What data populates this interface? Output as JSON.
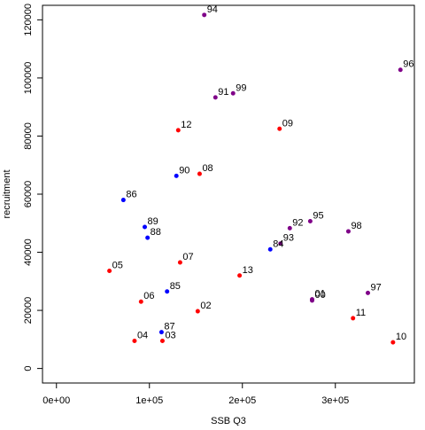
{
  "chart_data": {
    "type": "scatter",
    "xlabel": "SSB Q3",
    "ylabel": "recruitment",
    "xlim": [
      -15000,
      385000
    ],
    "ylim": [
      -5000,
      125000
    ],
    "x_ticks": [
      0,
      100000,
      200000,
      300000
    ],
    "x_tick_labels": [
      "0e+00",
      "1e+05",
      "2e+05",
      "3e+05"
    ],
    "y_ticks": [
      0,
      20000,
      40000,
      60000,
      80000,
      100000,
      120000
    ],
    "y_tick_labels": [
      "0",
      "20000",
      "40000",
      "60000",
      "80000",
      "100000",
      "120000"
    ],
    "grid": false,
    "colors": {
      "blue": "#0000ff",
      "purple": "#7f0088",
      "red": "#ff0000"
    },
    "points": [
      {
        "label": "84",
        "x": 230000,
        "y": 41000,
        "color": "blue"
      },
      {
        "label": "85",
        "x": 119000,
        "y": 26500,
        "color": "blue"
      },
      {
        "label": "86",
        "x": 72000,
        "y": 58000,
        "color": "blue"
      },
      {
        "label": "87",
        "x": 113000,
        "y": 12500,
        "color": "blue"
      },
      {
        "label": "88",
        "x": 98000,
        "y": 45000,
        "color": "blue"
      },
      {
        "label": "89",
        "x": 95000,
        "y": 48700,
        "color": "blue"
      },
      {
        "label": "90",
        "x": 129000,
        "y": 66300,
        "color": "blue"
      },
      {
        "label": "91",
        "x": 171000,
        "y": 93300,
        "color": "purple"
      },
      {
        "label": "92",
        "x": 251000,
        "y": 48300,
        "color": "purple"
      },
      {
        "label": "93",
        "x": 241000,
        "y": 43000,
        "color": "purple"
      },
      {
        "label": "94",
        "x": 159000,
        "y": 121700,
        "color": "purple"
      },
      {
        "label": "95",
        "x": 273000,
        "y": 50700,
        "color": "purple"
      },
      {
        "label": "96",
        "x": 370000,
        "y": 102800,
        "color": "purple"
      },
      {
        "label": "97",
        "x": 335000,
        "y": 26000,
        "color": "purple"
      },
      {
        "label": "98",
        "x": 314000,
        "y": 47200,
        "color": "purple"
      },
      {
        "label": "99",
        "x": 190000,
        "y": 94700,
        "color": "purple"
      },
      {
        "label": "00",
        "x": 275000,
        "y": 23400,
        "color": "purple"
      },
      {
        "label": "01",
        "x": 275000,
        "y": 23800,
        "color": "purple"
      },
      {
        "label": "02",
        "x": 152000,
        "y": 19700,
        "color": "red"
      },
      {
        "label": "03",
        "x": 114000,
        "y": 9500,
        "color": "red"
      },
      {
        "label": "04",
        "x": 84000,
        "y": 9500,
        "color": "red"
      },
      {
        "label": "05",
        "x": 57000,
        "y": 33600,
        "color": "red"
      },
      {
        "label": "06",
        "x": 91000,
        "y": 23000,
        "color": "red"
      },
      {
        "label": "07",
        "x": 133000,
        "y": 36500,
        "color": "red"
      },
      {
        "label": "08",
        "x": 154000,
        "y": 67000,
        "color": "red"
      },
      {
        "label": "09",
        "x": 240000,
        "y": 82500,
        "color": "red"
      },
      {
        "label": "10",
        "x": 362000,
        "y": 9000,
        "color": "red"
      },
      {
        "label": "11",
        "x": 319000,
        "y": 17300,
        "color": "red"
      },
      {
        "label": "12",
        "x": 131000,
        "y": 82000,
        "color": "red"
      },
      {
        "label": "13",
        "x": 197000,
        "y": 32000,
        "color": "red"
      }
    ]
  }
}
